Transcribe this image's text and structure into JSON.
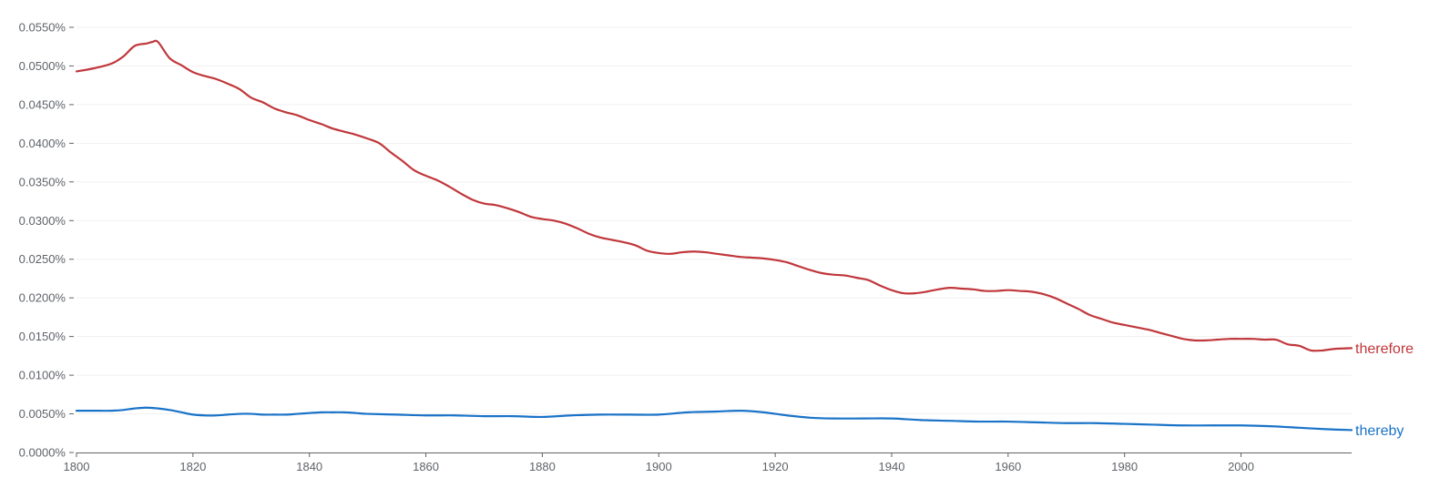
{
  "chart_data": {
    "type": "line",
    "title": "",
    "xlabel": "",
    "ylabel": "",
    "xlim": [
      1800,
      2019
    ],
    "ylim": [
      0,
      0.055
    ],
    "grid": true,
    "legend": "inline-right",
    "x_ticks": [
      "1800",
      "1820",
      "1840",
      "1860",
      "1880",
      "1900",
      "1920",
      "1940",
      "1960",
      "1980",
      "2000"
    ],
    "x_tick_values": [
      1800,
      1820,
      1840,
      1860,
      1880,
      1900,
      1920,
      1940,
      1960,
      1980,
      2000
    ],
    "y_ticks": [
      "0.0000%",
      "0.0050%",
      "0.0100%",
      "0.0150%",
      "0.0200%",
      "0.0250%",
      "0.0300%",
      "0.0350%",
      "0.0400%",
      "0.0450%",
      "0.0500%",
      "0.0550%"
    ],
    "y_tick_values": [
      0,
      0.005,
      0.01,
      0.015,
      0.02,
      0.025,
      0.03,
      0.035,
      0.04,
      0.045,
      0.05,
      0.055
    ],
    "series": [
      {
        "name": "therefore",
        "color": "#c0373b",
        "x": [
          1800,
          1803,
          1806,
          1808,
          1810,
          1812,
          1813,
          1814,
          1816,
          1818,
          1820,
          1822,
          1824,
          1826,
          1828,
          1830,
          1832,
          1834,
          1836,
          1838,
          1840,
          1842,
          1844,
          1846,
          1848,
          1850,
          1852,
          1854,
          1856,
          1858,
          1860,
          1862,
          1864,
          1866,
          1868,
          1870,
          1872,
          1874,
          1876,
          1878,
          1880,
          1882,
          1884,
          1886,
          1888,
          1890,
          1892,
          1894,
          1896,
          1898,
          1900,
          1902,
          1904,
          1906,
          1908,
          1910,
          1912,
          1914,
          1916,
          1918,
          1920,
          1922,
          1924,
          1926,
          1928,
          1930,
          1932,
          1934,
          1936,
          1938,
          1940,
          1942,
          1944,
          1946,
          1948,
          1950,
          1952,
          1954,
          1956,
          1958,
          1960,
          1962,
          1964,
          1966,
          1968,
          1970,
          1972,
          1974,
          1976,
          1978,
          1980,
          1982,
          1984,
          1986,
          1988,
          1990,
          1992,
          1994,
          1996,
          1998,
          2000,
          2002,
          2004,
          2006,
          2008,
          2010,
          2012,
          2014,
          2016,
          2019
        ],
        "values": [
          0.0493,
          0.0497,
          0.0503,
          0.0512,
          0.0526,
          0.0529,
          0.0531,
          0.0531,
          0.051,
          0.0501,
          0.0492,
          0.0487,
          0.0483,
          0.0477,
          0.047,
          0.0459,
          0.0453,
          0.0445,
          0.044,
          0.0436,
          0.043,
          0.0425,
          0.0419,
          0.0415,
          0.0411,
          0.0406,
          0.04,
          0.0388,
          0.0377,
          0.0365,
          0.0358,
          0.0352,
          0.0344,
          0.0335,
          0.0327,
          0.0322,
          0.032,
          0.0316,
          0.0311,
          0.0305,
          0.0302,
          0.03,
          0.0296,
          0.029,
          0.0283,
          0.0278,
          0.0275,
          0.0272,
          0.0268,
          0.0261,
          0.0258,
          0.0257,
          0.0259,
          0.026,
          0.0259,
          0.0257,
          0.0255,
          0.0253,
          0.0252,
          0.0251,
          0.0249,
          0.0246,
          0.0241,
          0.0236,
          0.0232,
          0.023,
          0.0229,
          0.0226,
          0.0223,
          0.0216,
          0.021,
          0.0206,
          0.0206,
          0.0208,
          0.0211,
          0.0213,
          0.0212,
          0.0211,
          0.0209,
          0.0209,
          0.021,
          0.0209,
          0.0208,
          0.0205,
          0.02,
          0.0193,
          0.0186,
          0.0178,
          0.0173,
          0.0168,
          0.0165,
          0.0162,
          0.0159,
          0.0155,
          0.0151,
          0.0147,
          0.0145,
          0.0145,
          0.0146,
          0.0147,
          0.0147,
          0.0147,
          0.0146,
          0.0146,
          0.014,
          0.0138,
          0.0132,
          0.0132,
          0.0134,
          0.0135
        ]
      },
      {
        "name": "thereby",
        "color": "#1a73c8",
        "x": [
          1800,
          1802,
          1804,
          1806,
          1808,
          1810,
          1812,
          1814,
          1816,
          1818,
          1820,
          1822,
          1824,
          1826,
          1828,
          1830,
          1832,
          1834,
          1836,
          1838,
          1840,
          1842,
          1844,
          1846,
          1848,
          1850,
          1855,
          1860,
          1865,
          1870,
          1875,
          1880,
          1885,
          1890,
          1895,
          1900,
          1905,
          1910,
          1914,
          1918,
          1922,
          1926,
          1930,
          1935,
          1940,
          1945,
          1950,
          1955,
          1960,
          1965,
          1970,
          1975,
          1980,
          1985,
          1990,
          1995,
          2000,
          2005,
          2010,
          2015,
          2019
        ],
        "values": [
          0.0054,
          0.0054,
          0.0054,
          0.0054,
          0.0055,
          0.0057,
          0.0058,
          0.0057,
          0.0055,
          0.0052,
          0.0049,
          0.0048,
          0.0048,
          0.0049,
          0.005,
          0.005,
          0.0049,
          0.0049,
          0.0049,
          0.005,
          0.0051,
          0.0052,
          0.0052,
          0.0052,
          0.0051,
          0.005,
          0.0049,
          0.0048,
          0.0048,
          0.0047,
          0.0047,
          0.0046,
          0.0048,
          0.0049,
          0.0049,
          0.0049,
          0.0052,
          0.0053,
          0.0054,
          0.0052,
          0.0048,
          0.0045,
          0.0044,
          0.0044,
          0.0044,
          0.0042,
          0.0041,
          0.004,
          0.004,
          0.0039,
          0.0038,
          0.0038,
          0.0037,
          0.0036,
          0.0035,
          0.0035,
          0.0035,
          0.0034,
          0.0032,
          0.003,
          0.0029
        ]
      }
    ]
  }
}
